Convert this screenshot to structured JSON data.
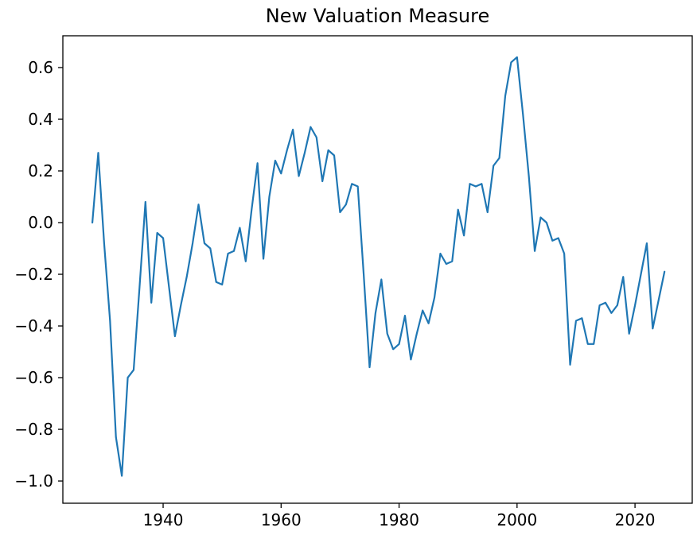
{
  "title": "New Valuation Measure",
  "colors": {
    "line": "#1f77b4",
    "axis": "#000000",
    "text": "#000000",
    "background": "#ffffff"
  },
  "chart_data": {
    "type": "line",
    "title": "New Valuation Measure",
    "xlabel": "",
    "ylabel": "",
    "grid": false,
    "legend": null,
    "xlim": [
      1923.0,
      2029.7
    ],
    "ylim": [
      -1.086,
      0.723
    ],
    "x_ticks": [
      1940,
      1960,
      1980,
      2000,
      2020
    ],
    "x_tick_labels": [
      "1940",
      "1960",
      "1980",
      "2000",
      "2020"
    ],
    "y_ticks": [
      0.6,
      0.4,
      0.2,
      0.0,
      -0.2,
      -0.4,
      -0.6,
      -0.8,
      -1.0
    ],
    "y_tick_labels": [
      "0.6",
      "0.4",
      "0.2",
      "0.0",
      "−0.2",
      "−0.4",
      "−0.6",
      "−0.8",
      "−1.0"
    ],
    "series": [
      {
        "name": "valuation",
        "color": "#1f77b4",
        "x": [
          1928,
          1929,
          1930,
          1931,
          1932,
          1933,
          1934,
          1935,
          1936,
          1937,
          1938,
          1939,
          1940,
          1941,
          1942,
          1943,
          1944,
          1945,
          1946,
          1947,
          1948,
          1949,
          1950,
          1951,
          1952,
          1953,
          1954,
          1955,
          1956,
          1957,
          1958,
          1959,
          1960,
          1961,
          1962,
          1963,
          1964,
          1965,
          1966,
          1967,
          1968,
          1969,
          1970,
          1971,
          1972,
          1973,
          1974,
          1975,
          1976,
          1977,
          1978,
          1979,
          1980,
          1981,
          1982,
          1983,
          1984,
          1985,
          1986,
          1987,
          1988,
          1989,
          1990,
          1991,
          1992,
          1993,
          1994,
          1995,
          1996,
          1997,
          1998,
          1999,
          2000,
          2001,
          2002,
          2003,
          2004,
          2005,
          2006,
          2007,
          2008,
          2009,
          2010,
          2011,
          2012,
          2013,
          2014,
          2015,
          2016,
          2017,
          2018,
          2019,
          2020,
          2021,
          2022,
          2023,
          2024,
          2025
        ],
        "y": [
          0.0,
          0.27,
          -0.08,
          -0.38,
          -0.83,
          -0.98,
          -0.6,
          -0.57,
          -0.25,
          0.08,
          -0.31,
          -0.04,
          -0.06,
          -0.25,
          -0.44,
          -0.32,
          -0.21,
          -0.08,
          0.07,
          -0.08,
          -0.1,
          -0.23,
          -0.24,
          -0.12,
          -0.11,
          -0.02,
          -0.15,
          0.05,
          0.23,
          -0.14,
          0.1,
          0.24,
          0.19,
          0.28,
          0.36,
          0.18,
          0.27,
          0.37,
          0.33,
          0.16,
          0.28,
          0.26,
          0.04,
          0.07,
          0.15,
          0.14,
          -0.2,
          -0.56,
          -0.35,
          -0.22,
          -0.43,
          -0.49,
          -0.47,
          -0.36,
          -0.53,
          -0.43,
          -0.34,
          -0.39,
          -0.29,
          -0.12,
          -0.16,
          -0.15,
          0.05,
          -0.05,
          0.15,
          0.14,
          0.15,
          0.04,
          0.22,
          0.25,
          0.49,
          0.62,
          0.64,
          0.42,
          0.18,
          -0.11,
          0.02,
          0.0,
          -0.07,
          -0.06,
          -0.12,
          -0.55,
          -0.38,
          -0.37,
          -0.47,
          -0.47,
          -0.32,
          -0.31,
          -0.35,
          -0.32,
          -0.21,
          -0.43,
          -0.32,
          -0.2,
          -0.08,
          -0.41,
          -0.3,
          -0.19
        ]
      }
    ]
  }
}
